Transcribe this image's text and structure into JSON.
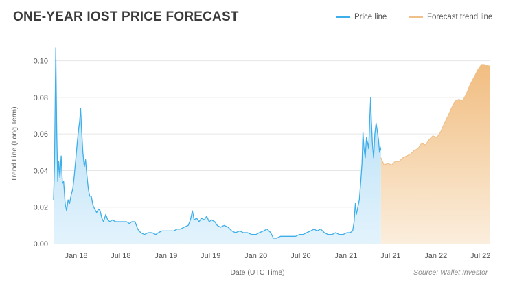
{
  "chart_data": {
    "type": "area",
    "title": "ONE-YEAR IOST PRICE FORECAST",
    "xlabel": "Date (UTC Time)",
    "ylabel": "Trend Line (Long Term)",
    "source": "Source: Wallet Investor",
    "legend_position": "top-right",
    "grid": true,
    "ylim": [
      0,
      0.11
    ],
    "xlim": [
      "2017-10-01",
      "2022-08-10"
    ],
    "y_ticks": [
      {
        "value": 0.0,
        "label": "0.00"
      },
      {
        "value": 0.02,
        "label": "0.02"
      },
      {
        "value": 0.04,
        "label": "0.04"
      },
      {
        "value": 0.06,
        "label": "0.06"
      },
      {
        "value": 0.08,
        "label": "0.08"
      },
      {
        "value": 0.1,
        "label": "0.10"
      }
    ],
    "x_ticks": [
      {
        "date": "2018-01-01",
        "label": "Jan 18"
      },
      {
        "date": "2018-07-01",
        "label": "Jul 18"
      },
      {
        "date": "2019-01-01",
        "label": "Jan 19"
      },
      {
        "date": "2019-07-01",
        "label": "Jul 19"
      },
      {
        "date": "2020-01-01",
        "label": "Jan 20"
      },
      {
        "date": "2020-07-01",
        "label": "Jul 20"
      },
      {
        "date": "2021-01-01",
        "label": "Jan 21"
      },
      {
        "date": "2021-07-01",
        "label": "Jul 21"
      },
      {
        "date": "2022-01-01",
        "label": "Jan 22"
      },
      {
        "date": "2022-07-01",
        "label": "Jul 22"
      }
    ],
    "series": [
      {
        "name": "Price line",
        "color": "#3daee9",
        "fill": "#bfe3f7",
        "points": [
          [
            "2017-10-01",
            0.024
          ],
          [
            "2017-10-05",
            0.044
          ],
          [
            "2017-10-10",
            0.107
          ],
          [
            "2017-10-14",
            0.06
          ],
          [
            "2017-10-18",
            0.034
          ],
          [
            "2017-10-22",
            0.045
          ],
          [
            "2017-10-27",
            0.036
          ],
          [
            "2017-11-01",
            0.048
          ],
          [
            "2017-11-06",
            0.033
          ],
          [
            "2017-11-11",
            0.034
          ],
          [
            "2017-11-17",
            0.022
          ],
          [
            "2017-11-23",
            0.018
          ],
          [
            "2017-11-29",
            0.024
          ],
          [
            "2017-12-05",
            0.022
          ],
          [
            "2017-12-12",
            0.027
          ],
          [
            "2017-12-18",
            0.03
          ],
          [
            "2017-12-24",
            0.037
          ],
          [
            "2017-12-30",
            0.046
          ],
          [
            "2018-01-05",
            0.055
          ],
          [
            "2018-01-11",
            0.063
          ],
          [
            "2018-01-15",
            0.067
          ],
          [
            "2018-01-19",
            0.074
          ],
          [
            "2018-01-23",
            0.062
          ],
          [
            "2018-01-28",
            0.05
          ],
          [
            "2018-02-03",
            0.042
          ],
          [
            "2018-02-08",
            0.046
          ],
          [
            "2018-02-13",
            0.038
          ],
          [
            "2018-02-19",
            0.03
          ],
          [
            "2018-02-25",
            0.026
          ],
          [
            "2018-03-03",
            0.026
          ],
          [
            "2018-03-10",
            0.021
          ],
          [
            "2018-03-17",
            0.019
          ],
          [
            "2018-03-25",
            0.017
          ],
          [
            "2018-04-02",
            0.019
          ],
          [
            "2018-04-08",
            0.018
          ],
          [
            "2018-04-15",
            0.014
          ],
          [
            "2018-04-22",
            0.012
          ],
          [
            "2018-05-01",
            0.016
          ],
          [
            "2018-05-09",
            0.013
          ],
          [
            "2018-05-18",
            0.012
          ],
          [
            "2018-05-28",
            0.013
          ],
          [
            "2018-06-10",
            0.012
          ],
          [
            "2018-06-25",
            0.012
          ],
          [
            "2018-07-10",
            0.012
          ],
          [
            "2018-07-25",
            0.012
          ],
          [
            "2018-08-05",
            0.011
          ],
          [
            "2018-08-15",
            0.012
          ],
          [
            "2018-08-28",
            0.012
          ],
          [
            "2018-09-08",
            0.008
          ],
          [
            "2018-09-20",
            0.006
          ],
          [
            "2018-10-05",
            0.005
          ],
          [
            "2018-10-20",
            0.006
          ],
          [
            "2018-11-05",
            0.006
          ],
          [
            "2018-11-20",
            0.005
          ],
          [
            "2018-12-01",
            0.006
          ],
          [
            "2018-12-15",
            0.007
          ],
          [
            "2019-01-01",
            0.007
          ],
          [
            "2019-01-15",
            0.007
          ],
          [
            "2019-02-01",
            0.007
          ],
          [
            "2019-02-15",
            0.008
          ],
          [
            "2019-03-01",
            0.008
          ],
          [
            "2019-03-15",
            0.009
          ],
          [
            "2019-04-01",
            0.01
          ],
          [
            "2019-04-10",
            0.013
          ],
          [
            "2019-04-18",
            0.018
          ],
          [
            "2019-04-25",
            0.013
          ],
          [
            "2019-05-05",
            0.014
          ],
          [
            "2019-05-15",
            0.012
          ],
          [
            "2019-05-25",
            0.014
          ],
          [
            "2019-06-05",
            0.013
          ],
          [
            "2019-06-15",
            0.015
          ],
          [
            "2019-06-25",
            0.012
          ],
          [
            "2019-07-05",
            0.013
          ],
          [
            "2019-07-18",
            0.012
          ],
          [
            "2019-07-28",
            0.01
          ],
          [
            "2019-08-10",
            0.009
          ],
          [
            "2019-08-25",
            0.01
          ],
          [
            "2019-09-10",
            0.009
          ],
          [
            "2019-09-25",
            0.007
          ],
          [
            "2019-10-10",
            0.006
          ],
          [
            "2019-10-28",
            0.007
          ],
          [
            "2019-11-10",
            0.006
          ],
          [
            "2019-11-28",
            0.006
          ],
          [
            "2019-12-15",
            0.005
          ],
          [
            "2020-01-01",
            0.005
          ],
          [
            "2020-01-15",
            0.006
          ],
          [
            "2020-02-01",
            0.007
          ],
          [
            "2020-02-15",
            0.008
          ],
          [
            "2020-03-01",
            0.006
          ],
          [
            "2020-03-12",
            0.003
          ],
          [
            "2020-03-25",
            0.003
          ],
          [
            "2020-04-10",
            0.004
          ],
          [
            "2020-04-25",
            0.004
          ],
          [
            "2020-05-10",
            0.004
          ],
          [
            "2020-05-25",
            0.004
          ],
          [
            "2020-06-10",
            0.004
          ],
          [
            "2020-06-25",
            0.005
          ],
          [
            "2020-07-10",
            0.005
          ],
          [
            "2020-07-25",
            0.006
          ],
          [
            "2020-08-10",
            0.007
          ],
          [
            "2020-08-25",
            0.008
          ],
          [
            "2020-09-05",
            0.007
          ],
          [
            "2020-09-20",
            0.008
          ],
          [
            "2020-10-05",
            0.006
          ],
          [
            "2020-10-20",
            0.005
          ],
          [
            "2020-11-05",
            0.005
          ],
          [
            "2020-11-20",
            0.006
          ],
          [
            "2020-12-05",
            0.005
          ],
          [
            "2020-12-20",
            0.005
          ],
          [
            "2021-01-05",
            0.006
          ],
          [
            "2021-01-18",
            0.006
          ],
          [
            "2021-01-28",
            0.007
          ],
          [
            "2021-02-03",
            0.012
          ],
          [
            "2021-02-08",
            0.022
          ],
          [
            "2021-02-12",
            0.016
          ],
          [
            "2021-02-18",
            0.02
          ],
          [
            "2021-02-24",
            0.024
          ],
          [
            "2021-03-02",
            0.034
          ],
          [
            "2021-03-07",
            0.044
          ],
          [
            "2021-03-11",
            0.061
          ],
          [
            "2021-03-15",
            0.052
          ],
          [
            "2021-03-20",
            0.047
          ],
          [
            "2021-03-25",
            0.058
          ],
          [
            "2021-03-30",
            0.055
          ],
          [
            "2021-04-03",
            0.052
          ],
          [
            "2021-04-08",
            0.07
          ],
          [
            "2021-04-11",
            0.08
          ],
          [
            "2021-04-14",
            0.068
          ],
          [
            "2021-04-18",
            0.055
          ],
          [
            "2021-04-23",
            0.047
          ],
          [
            "2021-04-28",
            0.06
          ],
          [
            "2021-05-03",
            0.066
          ],
          [
            "2021-05-08",
            0.062
          ],
          [
            "2021-05-13",
            0.057
          ],
          [
            "2021-05-17",
            0.05
          ],
          [
            "2021-05-20",
            0.053
          ],
          [
            "2021-05-23",
            0.051
          ]
        ]
      },
      {
        "name": "Forecast trend line",
        "color": "#efc08a",
        "fill": "#f3c791",
        "points": [
          [
            "2021-05-23",
            0.047
          ],
          [
            "2021-06-05",
            0.043
          ],
          [
            "2021-06-20",
            0.044
          ],
          [
            "2021-07-05",
            0.043
          ],
          [
            "2021-07-20",
            0.045
          ],
          [
            "2021-08-05",
            0.045
          ],
          [
            "2021-08-20",
            0.047
          ],
          [
            "2021-09-05",
            0.048
          ],
          [
            "2021-09-20",
            0.049
          ],
          [
            "2021-10-05",
            0.051
          ],
          [
            "2021-10-20",
            0.052
          ],
          [
            "2021-11-05",
            0.055
          ],
          [
            "2021-11-20",
            0.054
          ],
          [
            "2021-12-05",
            0.057
          ],
          [
            "2021-12-20",
            0.059
          ],
          [
            "2022-01-05",
            0.058
          ],
          [
            "2022-01-20",
            0.061
          ],
          [
            "2022-02-05",
            0.066
          ],
          [
            "2022-02-20",
            0.07
          ],
          [
            "2022-03-05",
            0.074
          ],
          [
            "2022-03-20",
            0.078
          ],
          [
            "2022-04-05",
            0.079
          ],
          [
            "2022-04-20",
            0.078
          ],
          [
            "2022-05-05",
            0.082
          ],
          [
            "2022-05-20",
            0.087
          ],
          [
            "2022-06-05",
            0.091
          ],
          [
            "2022-06-20",
            0.095
          ],
          [
            "2022-07-05",
            0.098
          ],
          [
            "2022-07-15",
            0.098
          ],
          [
            "2022-08-10",
            0.097
          ]
        ]
      }
    ]
  }
}
